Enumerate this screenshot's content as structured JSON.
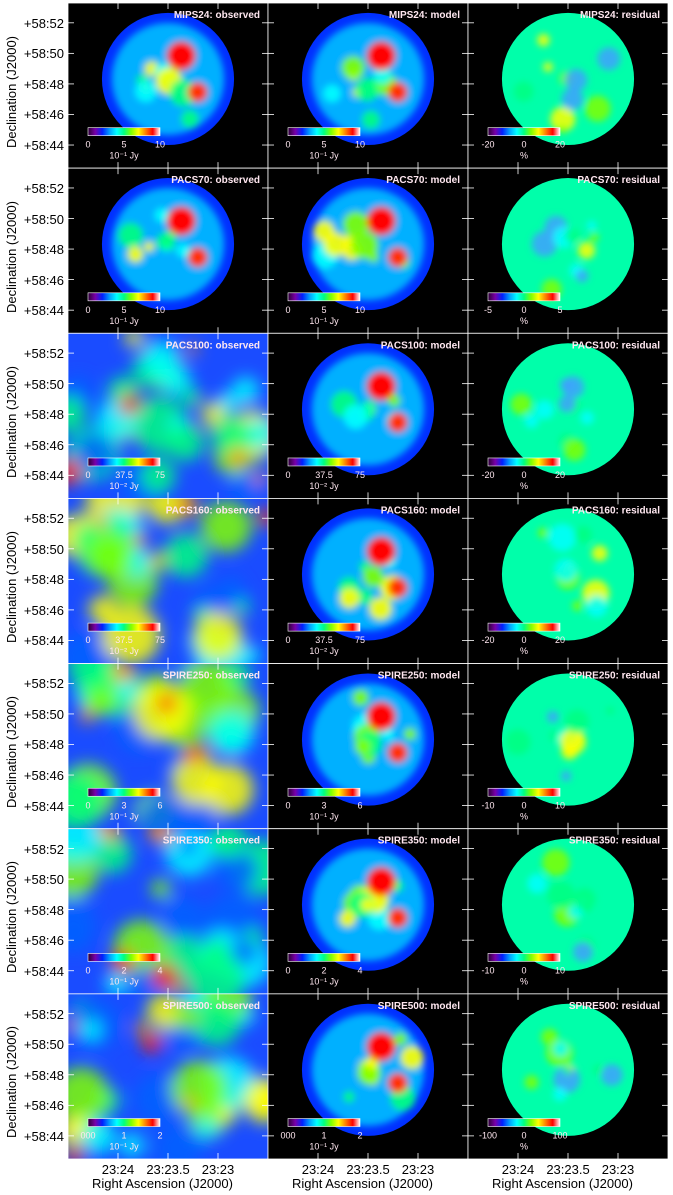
{
  "colors": {
    "background": "#000000",
    "frame": "#ffffff",
    "panel_title": "#ffe7f0",
    "colorbar_text": "#ffe7f0",
    "spectrum": [
      "#2a0033",
      "#7a00a8",
      "#0020ff",
      "#00a0ff",
      "#00ffff",
      "#00ff80",
      "#80ff00",
      "#ffff00",
      "#ff8000",
      "#ff0000",
      "#ffffff"
    ]
  },
  "axes": {
    "y_title": "Declination (J2000)",
    "x_title": "Right Ascension (J2000)",
    "y_ticks": [
      "+58:52",
      "+58:50",
      "+58:48",
      "+58:46",
      "+58:44"
    ],
    "x_ticks": [
      "23:24",
      "23:23.5",
      "23:23"
    ]
  },
  "rows": [
    {
      "band": "MIPS24",
      "panels": [
        {
          "title": "MIPS24: observed",
          "cb_ticks": [
            "0",
            "5",
            "10"
          ],
          "cb_unit": "10⁻¹ Jy",
          "style": "compact"
        },
        {
          "title": "MIPS24: model",
          "cb_ticks": [
            "0",
            "5",
            "10"
          ],
          "cb_unit": "10⁻¹ Jy",
          "style": "compact"
        },
        {
          "title": "MIPS24: residual",
          "cb_ticks": [
            "-20",
            "0",
            "20"
          ],
          "cb_unit": "%",
          "style": "residual"
        }
      ]
    },
    {
      "band": "PACS70",
      "panels": [
        {
          "title": "PACS70: observed",
          "cb_ticks": [
            "0",
            "5",
            "10"
          ],
          "cb_unit": "10⁻¹ Jy",
          "style": "compact"
        },
        {
          "title": "PACS70: model",
          "cb_ticks": [
            "0",
            "5",
            "10"
          ],
          "cb_unit": "10⁻¹ Jy",
          "style": "compact"
        },
        {
          "title": "PACS70: residual",
          "cb_ticks": [
            "-5",
            "0",
            "5"
          ],
          "cb_unit": "%",
          "style": "residual"
        }
      ]
    },
    {
      "band": "PACS100",
      "panels": [
        {
          "title": "PACS100: observed",
          "cb_ticks": [
            "0",
            "37.5",
            "75"
          ],
          "cb_unit": "10⁻² Jy",
          "style": "diffuse"
        },
        {
          "title": "PACS100: model",
          "cb_ticks": [
            "0",
            "37.5",
            "75"
          ],
          "cb_unit": "10⁻² Jy",
          "style": "compact"
        },
        {
          "title": "PACS100: residual",
          "cb_ticks": [
            "-20",
            "0",
            "20"
          ],
          "cb_unit": "%",
          "style": "residual"
        }
      ]
    },
    {
      "band": "PACS160",
      "panels": [
        {
          "title": "PACS160: observed",
          "cb_ticks": [
            "0",
            "37.5",
            "75"
          ],
          "cb_unit": "10⁻² Jy",
          "style": "diffuse"
        },
        {
          "title": "PACS160: model",
          "cb_ticks": [
            "0",
            "37.5",
            "75"
          ],
          "cb_unit": "10⁻² Jy",
          "style": "compact"
        },
        {
          "title": "PACS160: residual",
          "cb_ticks": [
            "-20",
            "0",
            "20"
          ],
          "cb_unit": "%",
          "style": "residual"
        }
      ]
    },
    {
      "band": "SPIRE250",
      "panels": [
        {
          "title": "SPIRE250: observed",
          "cb_ticks": [
            "0",
            "3",
            "6"
          ],
          "cb_unit": "10⁻¹ Jy",
          "style": "diffuse"
        },
        {
          "title": "SPIRE250: model",
          "cb_ticks": [
            "0",
            "3",
            "6"
          ],
          "cb_unit": "10⁻¹ Jy",
          "style": "compact"
        },
        {
          "title": "SPIRE250: residual",
          "cb_ticks": [
            "-10",
            "0",
            "10"
          ],
          "cb_unit": "%",
          "style": "residual"
        }
      ]
    },
    {
      "band": "SPIRE350",
      "panels": [
        {
          "title": "SPIRE350: observed",
          "cb_ticks": [
            "0",
            "2",
            "4"
          ],
          "cb_unit": "10⁻¹ Jy",
          "style": "diffuse"
        },
        {
          "title": "SPIRE350: model",
          "cb_ticks": [
            "0",
            "2",
            "4"
          ],
          "cb_unit": "10⁻¹ Jy",
          "style": "compact"
        },
        {
          "title": "SPIRE350: residual",
          "cb_ticks": [
            "-10",
            "0",
            "10"
          ],
          "cb_unit": "%",
          "style": "residual"
        }
      ]
    },
    {
      "band": "SPIRE500",
      "panels": [
        {
          "title": "SPIRE500: observed",
          "cb_ticks": [
            "000",
            "1",
            "2"
          ],
          "cb_unit": "10⁻¹ Jy",
          "style": "diffuse"
        },
        {
          "title": "SPIRE500: model",
          "cb_ticks": [
            "000",
            "1",
            "2"
          ],
          "cb_unit": "10⁻¹ Jy",
          "style": "compact"
        },
        {
          "title": "SPIRE500: residual",
          "cb_ticks": [
            "-100",
            "0",
            "100"
          ],
          "cb_unit": "%",
          "style": "residual"
        }
      ]
    }
  ]
}
